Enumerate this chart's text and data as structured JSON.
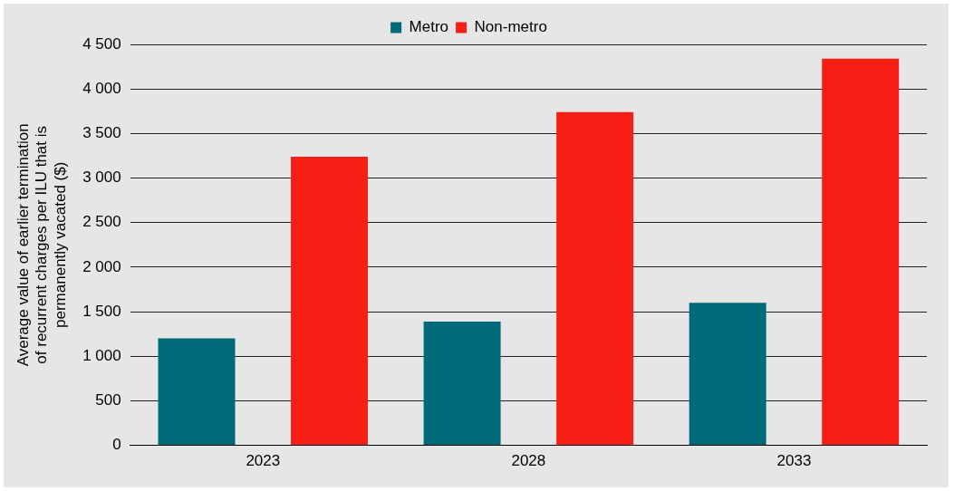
{
  "chart_data": {
    "type": "bar",
    "ylabel": "Average value of earlier termination of recurrent charges per ILU that is permanently vacated ($)",
    "categories": [
      "2023",
      "2028",
      "2033"
    ],
    "series": [
      {
        "name": "Metro",
        "color": "#006a78",
        "values": [
          1200,
          1390,
          1600
        ]
      },
      {
        "name": "Non-metro",
        "color": "#f51f16",
        "values": [
          3240,
          3740,
          4340
        ]
      }
    ],
    "ylim": [
      0,
      4500
    ],
    "yticks": [
      {
        "value": 0,
        "label": "0"
      },
      {
        "value": 500,
        "label": "500"
      },
      {
        "value": 1000,
        "label": "1 000"
      },
      {
        "value": 1500,
        "label": "1 500"
      },
      {
        "value": 2000,
        "label": "2 000"
      },
      {
        "value": 2500,
        "label": "2 500"
      },
      {
        "value": 3000,
        "label": "3 000"
      },
      {
        "value": 3500,
        "label": "3 500"
      },
      {
        "value": 4000,
        "label": "4 000"
      },
      {
        "value": 4500,
        "label": "4 500"
      }
    ],
    "grid": "y",
    "legend": "top"
  }
}
